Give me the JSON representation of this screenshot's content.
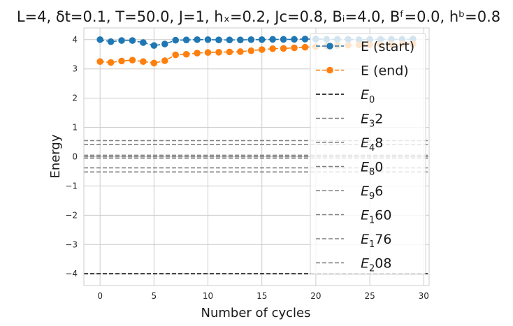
{
  "chart_data": {
    "type": "line",
    "title": "L=4, δt=0.1, T=50.0, J=1, hₓ=0.2, Jᴄ=0.8, Bᵢ=4.0, Bᶠ=0.0, hᵇ=0.8",
    "xlabel": "Number of cycles",
    "ylabel": "Energy",
    "xlim": [
      -1.5,
      30.5
    ],
    "ylim": [
      -4.4,
      4.4
    ],
    "xticks": [
      0,
      5,
      10,
      15,
      20,
      25,
      30
    ],
    "yticks": [
      -4,
      -3,
      -2,
      -1,
      0,
      1,
      2,
      3,
      4
    ],
    "grid": true,
    "legend_position": "right",
    "series": [
      {
        "name": "E (start)",
        "color": "#1f77b4",
        "style": "dashed-marker",
        "x": [
          0,
          1,
          2,
          3,
          4,
          5,
          6,
          7,
          8,
          9,
          10,
          11,
          12,
          13,
          14,
          15,
          16,
          17,
          18,
          19,
          20,
          21,
          22,
          23,
          24,
          25,
          26,
          27,
          28,
          29
        ],
        "y": [
          4.0,
          3.93,
          3.97,
          3.97,
          3.9,
          3.8,
          3.85,
          3.98,
          3.99,
          4.0,
          4.0,
          3.99,
          3.99,
          3.99,
          4.0,
          4.0,
          4.01,
          4.01,
          4.01,
          4.02,
          4.02,
          4.01,
          4.01,
          4.01,
          4.0,
          4.01,
          4.01,
          4.01,
          4.01,
          4.02
        ]
      },
      {
        "name": "E (end)",
        "color": "#ff7f0e",
        "style": "dashed-marker",
        "x": [
          0,
          1,
          2,
          3,
          4,
          5,
          6,
          7,
          8,
          9,
          10,
          11,
          12,
          13,
          14,
          15,
          16,
          17,
          18,
          19,
          20,
          21,
          22,
          23,
          24,
          25,
          26,
          27,
          28,
          29
        ],
        "y": [
          3.25,
          3.22,
          3.27,
          3.3,
          3.25,
          3.2,
          3.28,
          3.48,
          3.5,
          3.54,
          3.56,
          3.57,
          3.58,
          3.59,
          3.62,
          3.66,
          3.69,
          3.7,
          3.72,
          3.74,
          3.76,
          3.78,
          3.8,
          3.81,
          3.82,
          3.83,
          3.83,
          3.84,
          3.85,
          3.86
        ]
      }
    ],
    "hlines": [
      {
        "name": "E0",
        "label_base": "E",
        "label_sub": "0",
        "label_rest": "",
        "y": -4.0,
        "color": "#000000"
      },
      {
        "name": "E32",
        "label_base": "E",
        "label_sub": "3",
        "label_rest": "2",
        "y": 0.55,
        "color": "#808080"
      },
      {
        "name": "E48",
        "label_base": "E",
        "label_sub": "4",
        "label_rest": "8",
        "y": 0.42,
        "color": "#808080"
      },
      {
        "name": "E80",
        "label_base": "E",
        "label_sub": "8",
        "label_rest": "0",
        "y": 0.05,
        "color": "#808080"
      },
      {
        "name": "E96",
        "label_base": "E",
        "label_sub": "9",
        "label_rest": "6",
        "y": 0.0,
        "color": "#808080"
      },
      {
        "name": "E160",
        "label_base": "E",
        "label_sub": "1",
        "label_rest": "60",
        "y": -0.05,
        "color": "#808080"
      },
      {
        "name": "E176",
        "label_base": "E",
        "label_sub": "1",
        "label_rest": "76",
        "y": -0.38,
        "color": "#808080"
      },
      {
        "name": "E208",
        "label_base": "E",
        "label_sub": "2",
        "label_rest": "08",
        "y": -0.52,
        "color": "#808080"
      }
    ]
  }
}
